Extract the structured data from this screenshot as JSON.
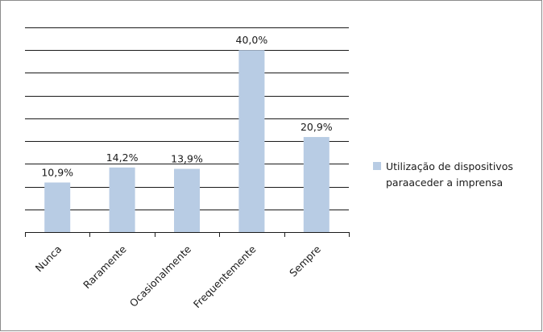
{
  "chart_data": {
    "type": "bar",
    "categories": [
      "Nunca",
      "Raramente",
      "Ocasionalmente",
      "Frequentemente",
      "Sempre"
    ],
    "series": [
      {
        "name": "Utilização de dispositivos para aceder a imprensa",
        "values": [
          10.9,
          14.2,
          13.9,
          40.0,
          20.9
        ],
        "labels": [
          "10,9%",
          "14,2%",
          "13,9%",
          "40,0%",
          "20,9%"
        ],
        "color": "#b8cce4"
      }
    ],
    "title": "",
    "xlabel": "",
    "ylabel": "",
    "ylim": [
      0,
      45
    ],
    "grid": true,
    "legend": "right"
  },
  "legend": {
    "line1": "Utilização de dispositivos",
    "line2": "paraaceder a imprensa"
  }
}
